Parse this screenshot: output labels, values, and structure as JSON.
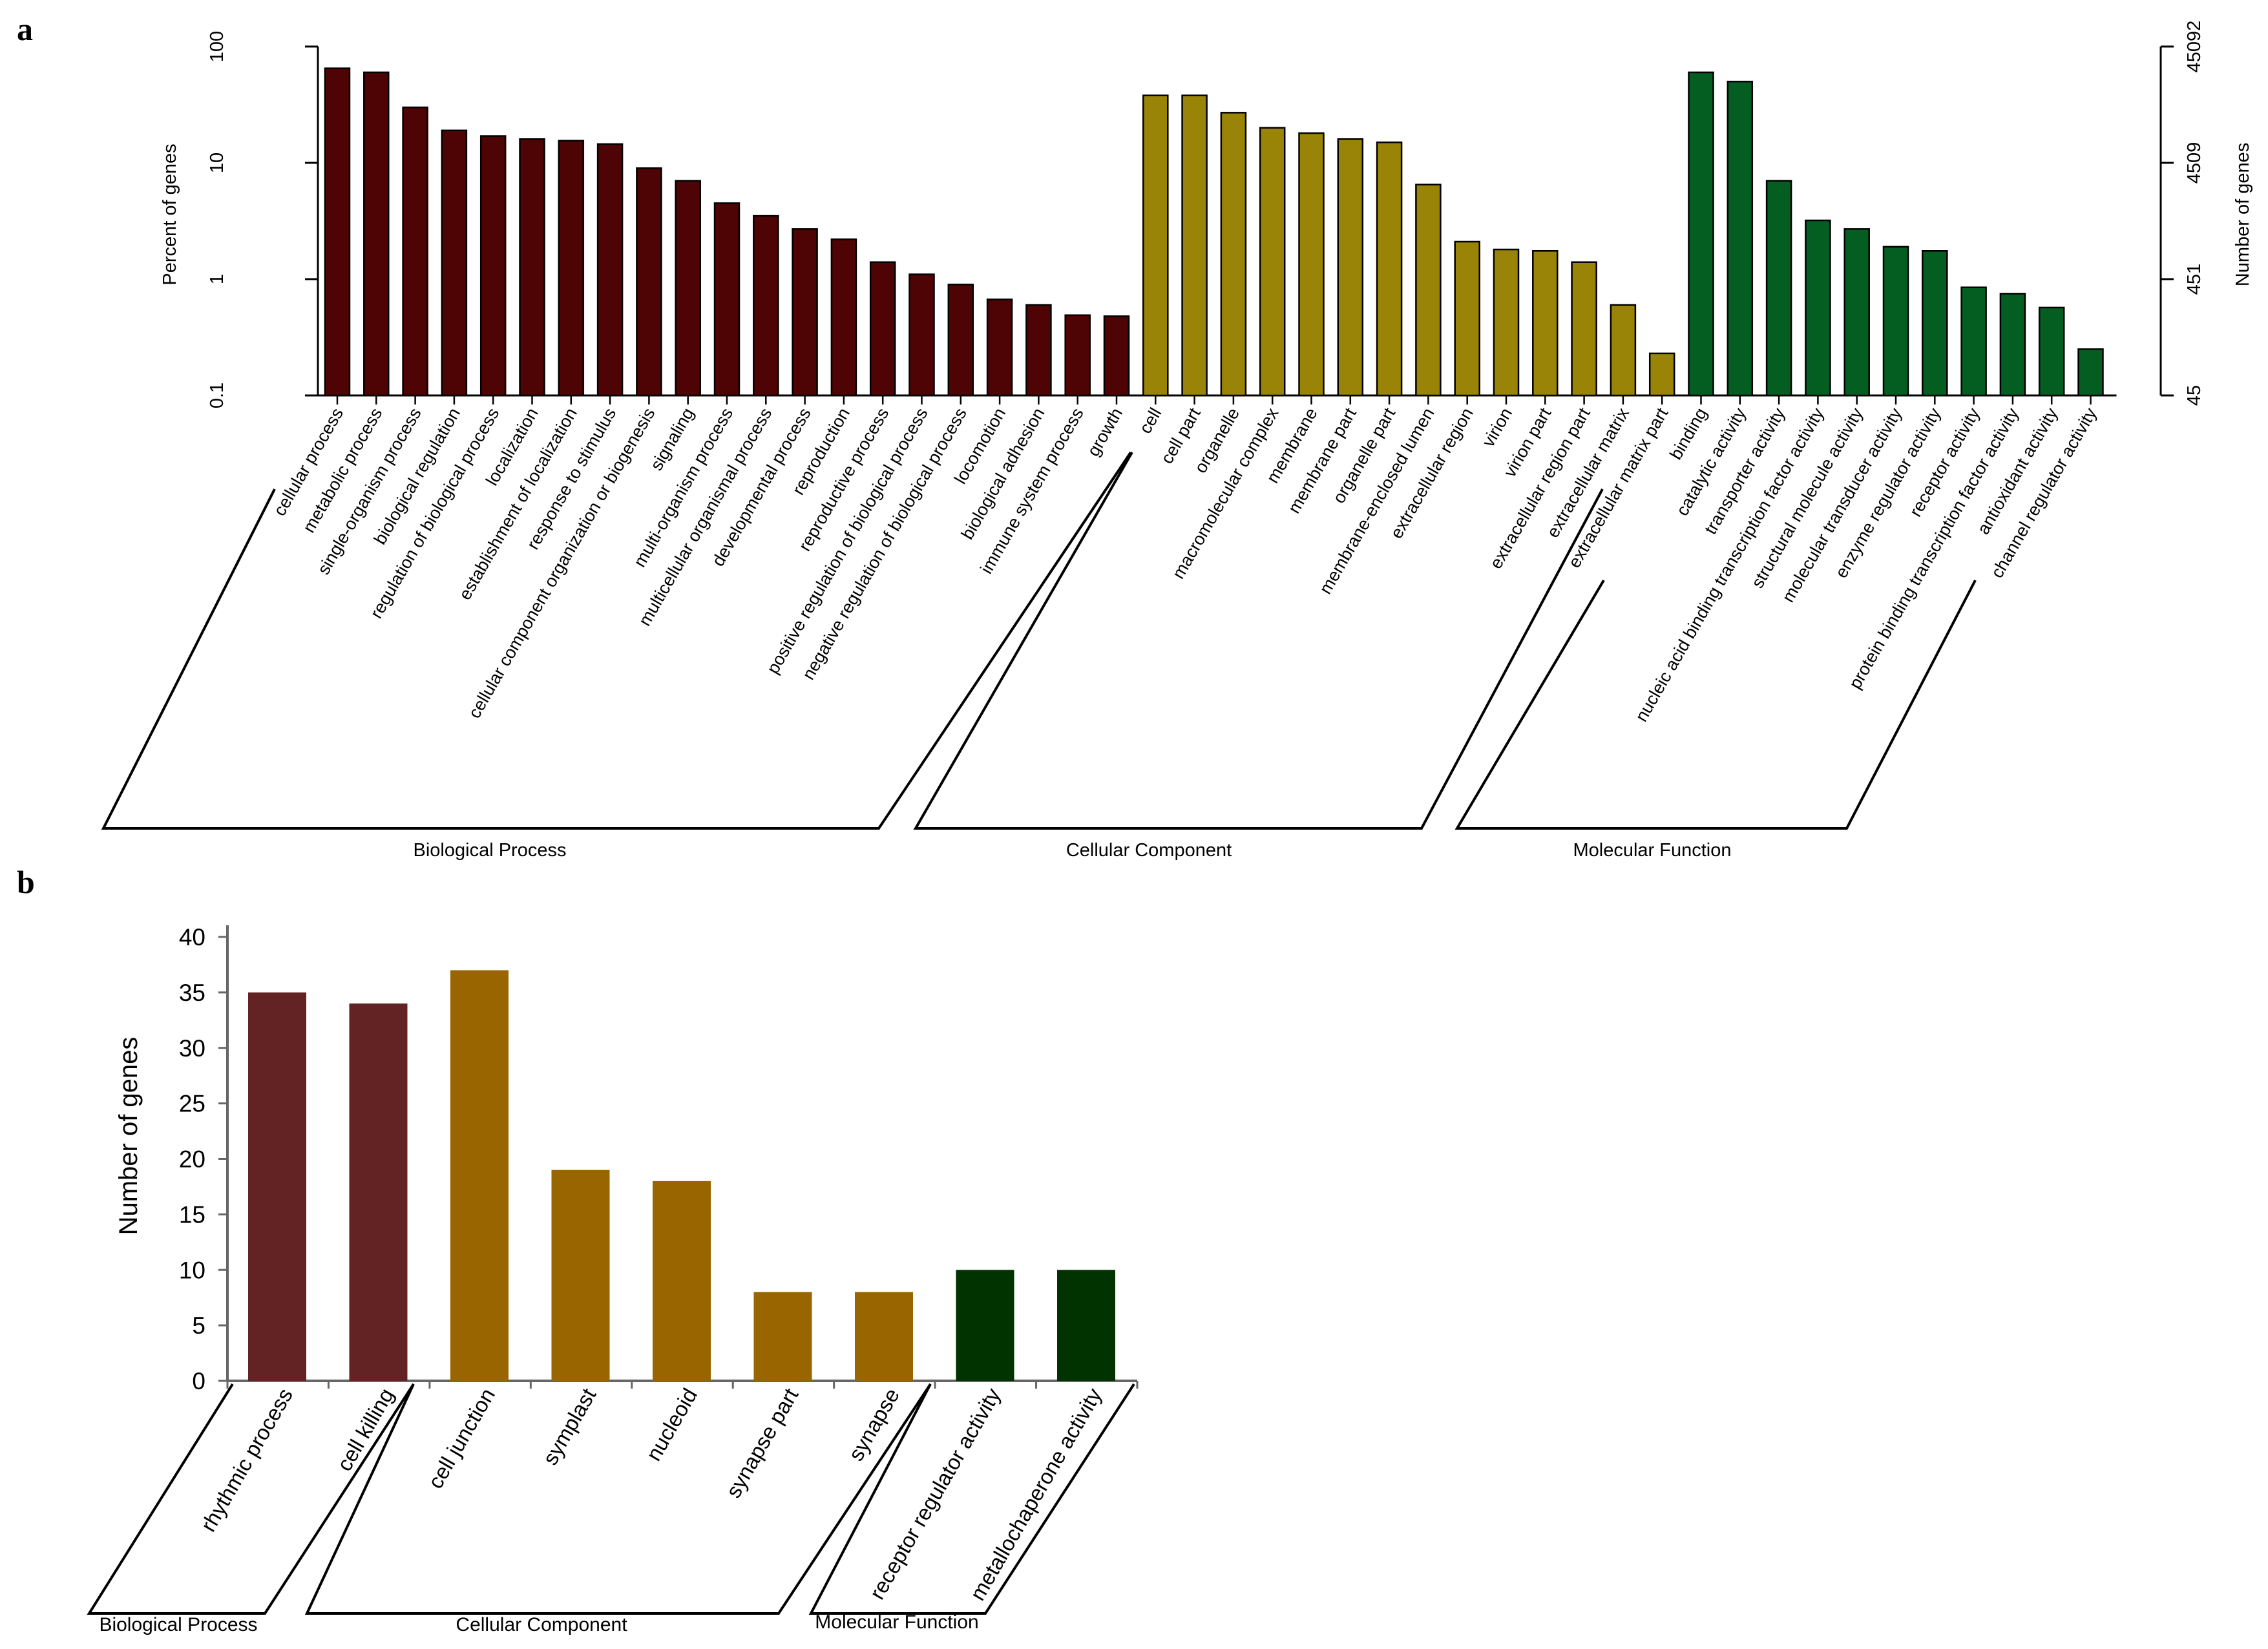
{
  "chart_data": [
    {
      "panel": "a",
      "type": "bar",
      "ylabel": "Percent of genes",
      "ylabel_right": "Number of genes",
      "yscale": "log",
      "ylim": [
        0.1,
        100
      ],
      "yticks": [
        "0.1",
        "1",
        "10",
        "100"
      ],
      "yticks_right": [
        "45",
        "451",
        "4509",
        "45092"
      ],
      "groups": [
        {
          "name": "Biological Process",
          "color": "#4e0404",
          "categories": [
            "cellular process",
            "metabolic process",
            "single-organism process",
            "biological regulation",
            "regulation of biological process",
            "localization",
            "establishment of localization",
            "response to stimulus",
            "cellular component organization or biogenesis",
            "signaling",
            "multi-organism process",
            "multicellular organismal process",
            "developmental process",
            "reproduction",
            "reproductive process",
            "positive regulation of biological process",
            "negative regulation of biological process",
            "locomotion",
            "biological adhesion",
            "immune system process",
            "growth"
          ],
          "values": [
            65,
            60,
            30,
            19,
            17,
            16,
            15.5,
            14.5,
            9,
            7,
            4.5,
            3.5,
            2.7,
            2.2,
            1.4,
            1.1,
            0.9,
            0.67,
            0.6,
            0.49,
            0.48
          ]
        },
        {
          "name": "Cellular Component",
          "color": "#9a8408",
          "categories": [
            "cell",
            "cell part",
            "organelle",
            "macromolecular complex",
            "membrane",
            "membrane part",
            "organelle part",
            "membrane-enclosed lumen",
            "extracellular region",
            "virion",
            "virion part",
            "extracellular region part",
            "extracellular matrix",
            "extracellular matrix part"
          ],
          "values": [
            38,
            38,
            27,
            20,
            18,
            16,
            15,
            6.5,
            2.1,
            1.8,
            1.75,
            1.4,
            0.6,
            0.23
          ]
        },
        {
          "name": "Molecular Function",
          "color": "#055e21",
          "categories": [
            "binding",
            "catalytic activity",
            "transporter activity",
            "nucleic acid binding transcription factor activity",
            "structural molecule activity",
            "molecular transducer activity",
            "enzyme regulator activity",
            "receptor activity",
            "protein binding transcription factor activity",
            "antioxidant activity",
            "channel regulator activity"
          ],
          "values": [
            60,
            50,
            7,
            3.2,
            2.7,
            1.9,
            1.75,
            0.85,
            0.75,
            0.57,
            0.25
          ]
        }
      ]
    },
    {
      "panel": "b",
      "type": "bar",
      "ylabel": "Number of genes",
      "ylim": [
        0,
        40
      ],
      "yticks": [
        "0",
        "5",
        "10",
        "15",
        "20",
        "25",
        "30",
        "35",
        "40"
      ],
      "groups": [
        {
          "name": "Biological Process",
          "color": "#632324",
          "categories": [
            "rhythmic process",
            "cell killing"
          ],
          "values": [
            35,
            34
          ]
        },
        {
          "name": "Cellular Component",
          "color": "#996500",
          "categories": [
            "cell junction",
            "symplast",
            "nucleoid",
            "synapse part",
            "synapse"
          ],
          "values": [
            37,
            19,
            18,
            8,
            8
          ]
        },
        {
          "name": "Molecular Function",
          "color": "#003300",
          "categories": [
            "receptor regulator activity",
            "metallochaperone activity"
          ],
          "values": [
            10,
            10
          ]
        }
      ]
    }
  ]
}
